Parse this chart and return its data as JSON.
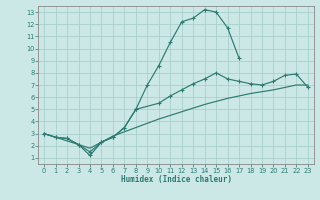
{
  "xlabel": "Humidex (Indice chaleur)",
  "xlim": [
    -0.5,
    23.5
  ],
  "ylim": [
    0.5,
    13.5
  ],
  "xticks": [
    0,
    1,
    2,
    3,
    4,
    5,
    6,
    7,
    8,
    9,
    10,
    11,
    12,
    13,
    14,
    15,
    16,
    17,
    18,
    19,
    20,
    21,
    22,
    23
  ],
  "yticks": [
    1,
    2,
    3,
    4,
    5,
    6,
    7,
    8,
    9,
    10,
    11,
    12,
    13
  ],
  "bg_color": "#cce8e6",
  "grid_color": "#aacfcc",
  "line_color": "#2d7a72",
  "curve1_x": [
    0,
    1,
    2,
    3,
    4,
    5,
    6,
    7,
    8,
    9,
    10,
    11,
    12,
    13,
    14,
    15,
    16,
    17
  ],
  "curve1_y": [
    3.0,
    2.7,
    2.6,
    2.1,
    1.5,
    2.3,
    2.7,
    3.5,
    5.0,
    7.0,
    8.6,
    10.5,
    12.2,
    12.5,
    13.2,
    13.0,
    11.7,
    9.2
  ],
  "curve2_x": [
    0,
    1,
    2,
    3,
    4,
    5,
    6,
    7,
    8,
    10,
    11,
    12,
    13,
    14,
    15,
    16,
    17,
    18,
    19,
    20,
    21,
    22,
    23
  ],
  "curve2_y": [
    3.0,
    2.7,
    2.6,
    2.1,
    1.2,
    2.3,
    2.7,
    3.5,
    5.0,
    5.5,
    6.1,
    6.6,
    7.1,
    7.5,
    8.0,
    7.5,
    7.3,
    7.1,
    7.0,
    7.3,
    7.8,
    7.9,
    6.8
  ],
  "curve3_x": [
    0,
    4,
    6,
    8,
    10,
    12,
    14,
    16,
    18,
    20,
    22,
    23
  ],
  "curve3_y": [
    3.0,
    1.8,
    2.8,
    3.5,
    4.2,
    4.8,
    5.4,
    5.9,
    6.3,
    6.6,
    7.0,
    7.0
  ]
}
